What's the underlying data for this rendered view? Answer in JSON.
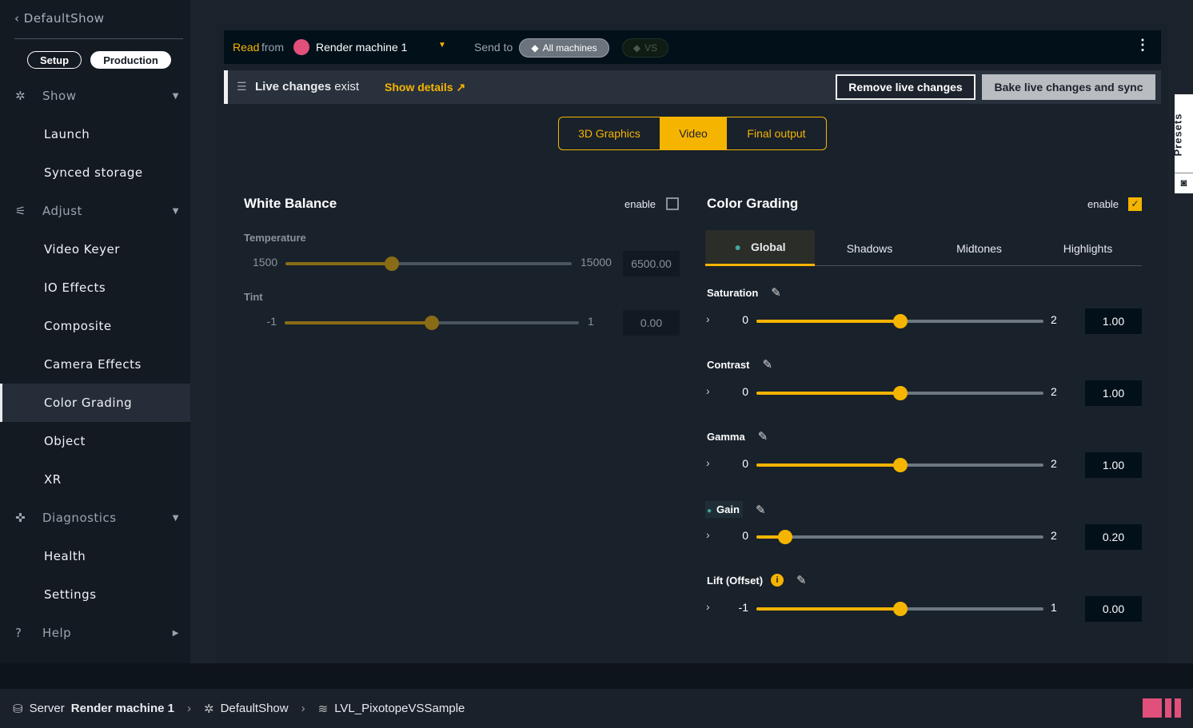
{
  "sidebar": {
    "back": "DefaultShow",
    "modes": [
      "Setup",
      "Production"
    ],
    "items": [
      {
        "label": "Show",
        "type": "group"
      },
      {
        "label": "Launch"
      },
      {
        "label": "Synced storage"
      },
      {
        "label": "Adjust",
        "type": "group"
      },
      {
        "label": "Video Keyer"
      },
      {
        "label": "IO Effects"
      },
      {
        "label": "Composite"
      },
      {
        "label": "Camera Effects"
      },
      {
        "label": "Color Grading",
        "selected": true
      },
      {
        "label": "Object"
      },
      {
        "label": "XR"
      },
      {
        "label": "Diagnostics",
        "type": "group"
      },
      {
        "label": "Health"
      },
      {
        "label": "Settings"
      },
      {
        "label": "Help",
        "type": "group"
      }
    ]
  },
  "topbar": {
    "read": "Read",
    "from": "from",
    "machine": "Render machine 1",
    "machine_color": "#e0507a",
    "send_to": "Send to",
    "tag_all": "All machines",
    "tag_vs": "VS"
  },
  "live": {
    "bold": "Live changes",
    "rest": "exist",
    "show_details": "Show details",
    "remove": "Remove live changes",
    "bake": "Bake live changes and sync"
  },
  "segments": [
    "3D Graphics",
    "Video",
    "Final output"
  ],
  "presets": "Presets",
  "white_balance": {
    "title": "White Balance",
    "enable": "enable",
    "enabled": false,
    "sliders": [
      {
        "label": "Temperature",
        "min": 1500,
        "max": 15000,
        "value": 6500,
        "display": "6500.00"
      },
      {
        "label": "Tint",
        "min": -1,
        "max": 1,
        "value": 0,
        "display": "0.00"
      }
    ]
  },
  "color_grading": {
    "title": "Color Grading",
    "enable": "enable",
    "enabled": true,
    "tabs": [
      "Global",
      "Shadows",
      "Midtones",
      "Highlights"
    ],
    "sliders": [
      {
        "label": "Saturation",
        "min": 0,
        "max": 2,
        "value": 1,
        "display": "1.00"
      },
      {
        "label": "Contrast",
        "min": 0,
        "max": 2,
        "value": 1,
        "display": "1.00"
      },
      {
        "label": "Gamma",
        "min": 0,
        "max": 2,
        "value": 1,
        "display": "1.00"
      },
      {
        "label": "Gain",
        "min": 0,
        "max": 2,
        "value": 0.2,
        "display": "0.20",
        "modified": true
      },
      {
        "label": "Lift (Offset)",
        "min": -1,
        "max": 1,
        "value": 0,
        "display": "0.00",
        "info": true
      }
    ]
  },
  "status": {
    "server": "Server",
    "machine": "Render machine 1",
    "show": "DefaultShow",
    "level": "LVL_PixotopeVSSample"
  },
  "colors": {
    "accent": "#f5b400",
    "pink": "#e0507a",
    "teal": "#3fa6a0"
  }
}
